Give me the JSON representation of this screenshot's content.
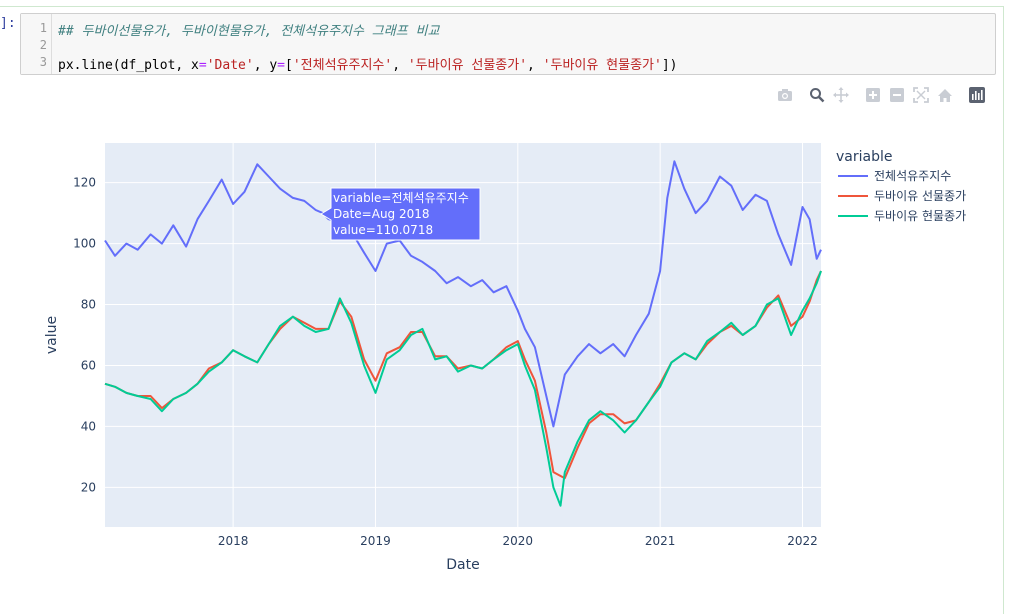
{
  "cell": {
    "prompt": "]:",
    "line_numbers": [
      "1",
      "2",
      "3"
    ],
    "code_comment": "## 두바이선물유가, 두바이현물유가, 전체석유주지수 그래프 비교",
    "code_parts": {
      "p1": "px.line(df_plot, x",
      "eq1": "=",
      "s1": "'Date'",
      "p2": ", y",
      "eq2": "=",
      "p3": "[",
      "s2": "'전체석유주지수'",
      "p4": ", ",
      "s3": "'두바이유 선물종가'",
      "p5": ", ",
      "s4": "'두바이유 현물종가'",
      "p6": "])"
    }
  },
  "modebar": {
    "icons": [
      "camera-icon",
      "zoom-icon",
      "pan-icon",
      "zoom-in-icon",
      "zoom-out-icon",
      "autoscale-icon",
      "home-icon",
      "plotly-logo-icon"
    ]
  },
  "hover": {
    "line1": "variable=전체석유주지수",
    "line2": "Date=Aug 2018",
    "line3": "value=110.0718",
    "bg_color": "#636efa"
  },
  "chart_data": {
    "type": "line",
    "xlabel": "Date",
    "ylabel": "value",
    "xlim": [
      2017.1,
      2022.13
    ],
    "ylim": [
      7,
      133
    ],
    "x_ticks": [
      2018,
      2019,
      2020,
      2021,
      2022
    ],
    "x_tick_labels": [
      "2018",
      "2019",
      "2020",
      "2021",
      "2022"
    ],
    "y_ticks": [
      20,
      40,
      60,
      80,
      100,
      120
    ],
    "y_tick_labels": [
      "20",
      "40",
      "60",
      "80",
      "100",
      "120"
    ],
    "grid": true,
    "legend_title": "variable",
    "legend_position": "right",
    "series": [
      {
        "name": "전체석유주지수",
        "color": "#636efa",
        "points": [
          [
            2017.1,
            101
          ],
          [
            2017.17,
            96
          ],
          [
            2017.25,
            100
          ],
          [
            2017.33,
            98
          ],
          [
            2017.42,
            103
          ],
          [
            2017.5,
            100
          ],
          [
            2017.58,
            106
          ],
          [
            2017.67,
            99
          ],
          [
            2017.75,
            108
          ],
          [
            2017.83,
            114
          ],
          [
            2017.92,
            121
          ],
          [
            2018.0,
            113
          ],
          [
            2018.08,
            117
          ],
          [
            2018.17,
            126
          ],
          [
            2018.25,
            122
          ],
          [
            2018.33,
            118
          ],
          [
            2018.42,
            115
          ],
          [
            2018.5,
            114
          ],
          [
            2018.58,
            111
          ],
          [
            2018.63,
            110
          ],
          [
            2018.67,
            108
          ],
          [
            2018.75,
            107
          ],
          [
            2018.83,
            104
          ],
          [
            2018.92,
            97
          ],
          [
            2019.0,
            91
          ],
          [
            2019.08,
            100
          ],
          [
            2019.17,
            101
          ],
          [
            2019.25,
            96
          ],
          [
            2019.33,
            94
          ],
          [
            2019.42,
            91
          ],
          [
            2019.5,
            87
          ],
          [
            2019.58,
            89
          ],
          [
            2019.67,
            86
          ],
          [
            2019.75,
            88
          ],
          [
            2019.83,
            84
          ],
          [
            2019.92,
            86
          ],
          [
            2020.0,
            78
          ],
          [
            2020.05,
            72
          ],
          [
            2020.12,
            66
          ],
          [
            2020.2,
            50
          ],
          [
            2020.25,
            40
          ],
          [
            2020.33,
            57
          ],
          [
            2020.42,
            63
          ],
          [
            2020.5,
            67
          ],
          [
            2020.58,
            64
          ],
          [
            2020.67,
            67
          ],
          [
            2020.75,
            63
          ],
          [
            2020.83,
            70
          ],
          [
            2020.92,
            77
          ],
          [
            2021.0,
            91
          ],
          [
            2021.05,
            115
          ],
          [
            2021.1,
            127
          ],
          [
            2021.17,
            118
          ],
          [
            2021.25,
            110
          ],
          [
            2021.33,
            114
          ],
          [
            2021.42,
            122
          ],
          [
            2021.5,
            119
          ],
          [
            2021.58,
            111
          ],
          [
            2021.67,
            116
          ],
          [
            2021.75,
            114
          ],
          [
            2021.83,
            103
          ],
          [
            2021.92,
            93
          ],
          [
            2022.0,
            112
          ],
          [
            2022.05,
            108
          ],
          [
            2022.1,
            95
          ],
          [
            2022.13,
            98
          ]
        ]
      },
      {
        "name": "두바이유 선물종가",
        "color": "#ef553b",
        "points": [
          [
            2017.1,
            54
          ],
          [
            2017.17,
            53
          ],
          [
            2017.25,
            51
          ],
          [
            2017.33,
            50
          ],
          [
            2017.42,
            50
          ],
          [
            2017.5,
            46
          ],
          [
            2017.58,
            49
          ],
          [
            2017.67,
            51
          ],
          [
            2017.75,
            54
          ],
          [
            2017.83,
            59
          ],
          [
            2017.92,
            61
          ],
          [
            2018.0,
            65
          ],
          [
            2018.08,
            63
          ],
          [
            2018.17,
            61
          ],
          [
            2018.25,
            67
          ],
          [
            2018.33,
            72
          ],
          [
            2018.42,
            76
          ],
          [
            2018.5,
            74
          ],
          [
            2018.58,
            72
          ],
          [
            2018.67,
            72
          ],
          [
            2018.75,
            81
          ],
          [
            2018.83,
            76
          ],
          [
            2018.92,
            62
          ],
          [
            2019.0,
            55
          ],
          [
            2019.08,
            64
          ],
          [
            2019.17,
            66
          ],
          [
            2019.25,
            71
          ],
          [
            2019.33,
            71
          ],
          [
            2019.42,
            63
          ],
          [
            2019.5,
            63
          ],
          [
            2019.58,
            59
          ],
          [
            2019.67,
            60
          ],
          [
            2019.75,
            59
          ],
          [
            2019.83,
            62
          ],
          [
            2019.92,
            66
          ],
          [
            2020.0,
            68
          ],
          [
            2020.05,
            62
          ],
          [
            2020.12,
            55
          ],
          [
            2020.2,
            38
          ],
          [
            2020.25,
            25
          ],
          [
            2020.33,
            23
          ],
          [
            2020.42,
            33
          ],
          [
            2020.5,
            41
          ],
          [
            2020.58,
            44
          ],
          [
            2020.67,
            44
          ],
          [
            2020.75,
            41
          ],
          [
            2020.83,
            42
          ],
          [
            2020.92,
            48
          ],
          [
            2021.0,
            54
          ],
          [
            2021.08,
            61
          ],
          [
            2021.17,
            64
          ],
          [
            2021.25,
            62
          ],
          [
            2021.33,
            67
          ],
          [
            2021.42,
            71
          ],
          [
            2021.5,
            73
          ],
          [
            2021.58,
            70
          ],
          [
            2021.67,
            73
          ],
          [
            2021.75,
            79
          ],
          [
            2021.83,
            83
          ],
          [
            2021.92,
            73
          ],
          [
            2022.0,
            76
          ],
          [
            2022.05,
            81
          ],
          [
            2022.1,
            88
          ],
          [
            2022.13,
            91
          ]
        ]
      },
      {
        "name": "두바이유 현물종가",
        "color": "#00cc96",
        "points": [
          [
            2017.1,
            54
          ],
          [
            2017.17,
            53
          ],
          [
            2017.25,
            51
          ],
          [
            2017.33,
            50
          ],
          [
            2017.42,
            49
          ],
          [
            2017.5,
            45
          ],
          [
            2017.58,
            49
          ],
          [
            2017.67,
            51
          ],
          [
            2017.75,
            54
          ],
          [
            2017.83,
            58
          ],
          [
            2017.92,
            61
          ],
          [
            2018.0,
            65
          ],
          [
            2018.08,
            63
          ],
          [
            2018.17,
            61
          ],
          [
            2018.25,
            67
          ],
          [
            2018.33,
            73
          ],
          [
            2018.42,
            76
          ],
          [
            2018.5,
            73
          ],
          [
            2018.58,
            71
          ],
          [
            2018.67,
            72
          ],
          [
            2018.75,
            82
          ],
          [
            2018.83,
            74
          ],
          [
            2018.92,
            60
          ],
          [
            2019.0,
            51
          ],
          [
            2019.08,
            62
          ],
          [
            2019.17,
            65
          ],
          [
            2019.25,
            70
          ],
          [
            2019.33,
            72
          ],
          [
            2019.42,
            62
          ],
          [
            2019.5,
            63
          ],
          [
            2019.58,
            58
          ],
          [
            2019.67,
            60
          ],
          [
            2019.75,
            59
          ],
          [
            2019.83,
            62
          ],
          [
            2019.92,
            65
          ],
          [
            2020.0,
            67
          ],
          [
            2020.05,
            60
          ],
          [
            2020.12,
            52
          ],
          [
            2020.2,
            33
          ],
          [
            2020.25,
            20
          ],
          [
            2020.3,
            14
          ],
          [
            2020.33,
            25
          ],
          [
            2020.42,
            35
          ],
          [
            2020.5,
            42
          ],
          [
            2020.58,
            45
          ],
          [
            2020.67,
            42
          ],
          [
            2020.75,
            38
          ],
          [
            2020.83,
            42
          ],
          [
            2020.92,
            48
          ],
          [
            2021.0,
            53
          ],
          [
            2021.08,
            61
          ],
          [
            2021.17,
            64
          ],
          [
            2021.25,
            62
          ],
          [
            2021.33,
            68
          ],
          [
            2021.42,
            71
          ],
          [
            2021.5,
            74
          ],
          [
            2021.58,
            70
          ],
          [
            2021.67,
            73
          ],
          [
            2021.75,
            80
          ],
          [
            2021.83,
            82
          ],
          [
            2021.92,
            70
          ],
          [
            2022.0,
            78
          ],
          [
            2022.05,
            82
          ],
          [
            2022.1,
            87
          ],
          [
            2022.13,
            91
          ]
        ]
      }
    ]
  }
}
